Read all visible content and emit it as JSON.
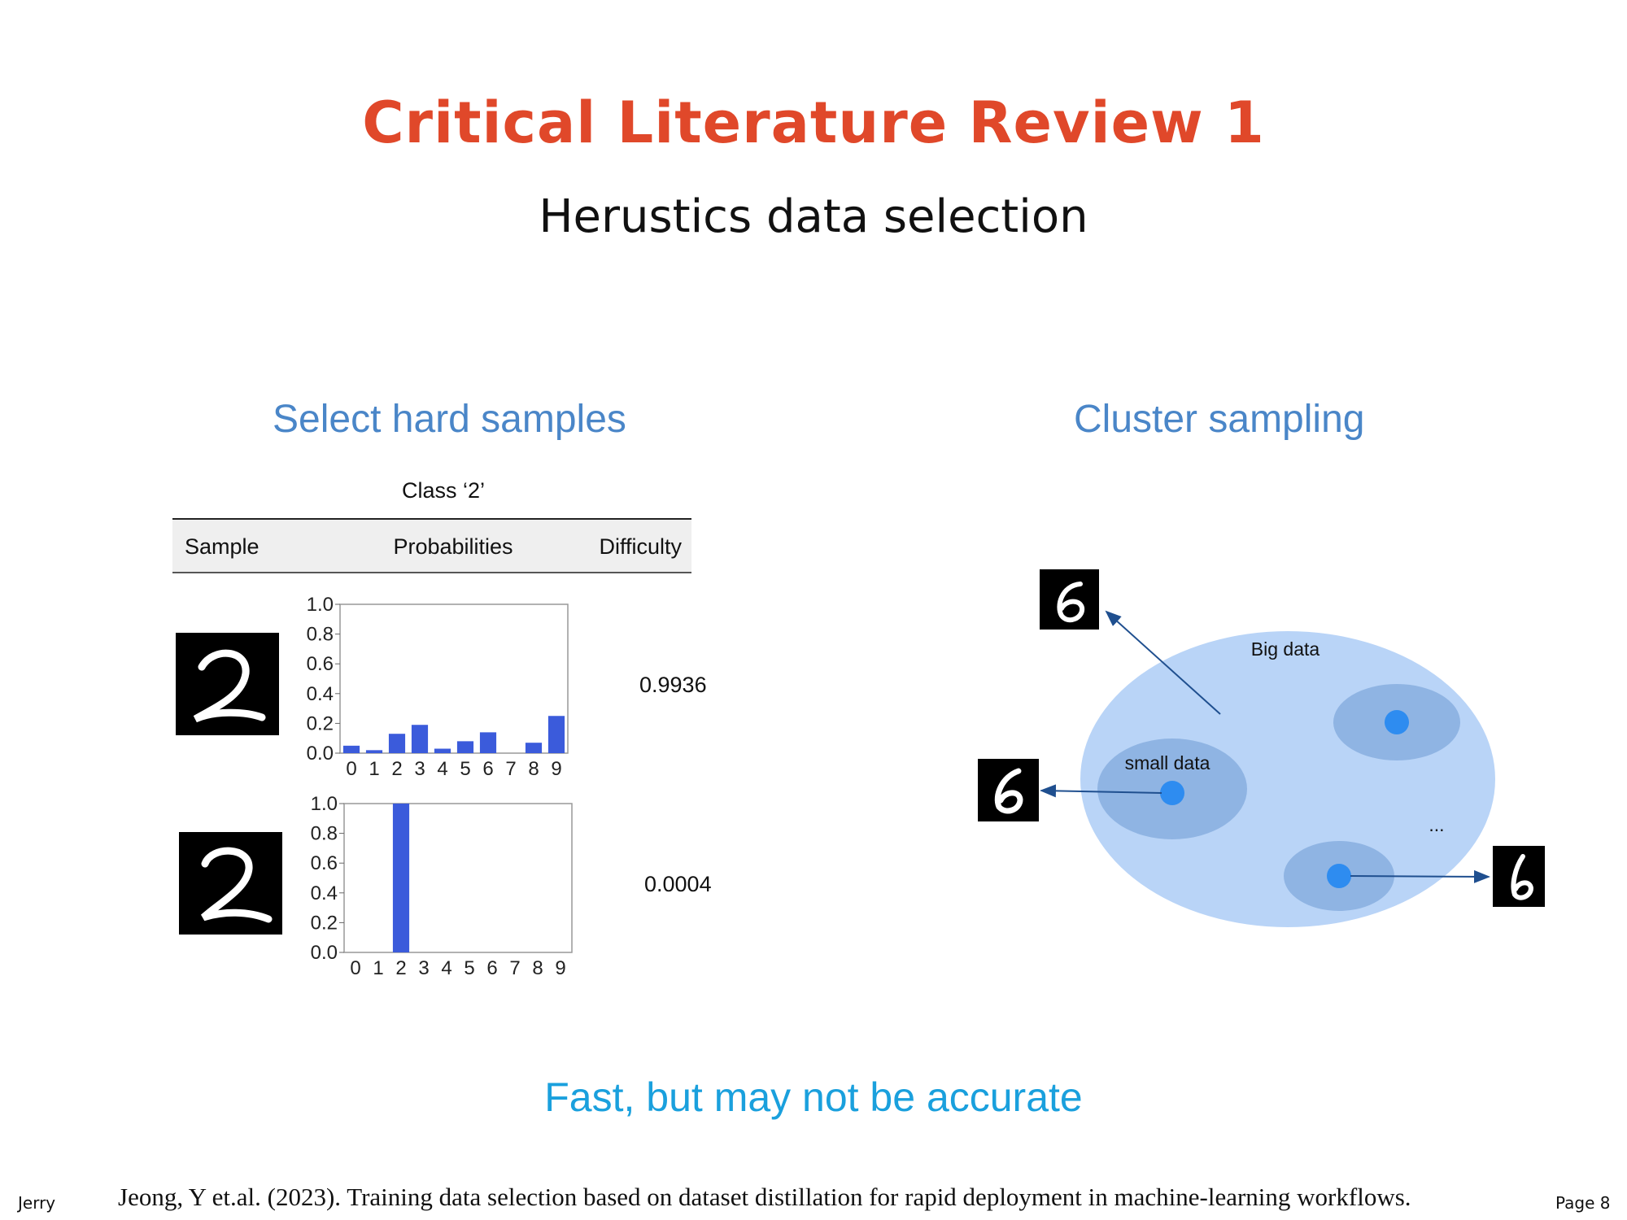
{
  "slide": {
    "title": "Critical Literature Review 1",
    "subtitle": "Herustics data selection",
    "left_heading": "Select hard samples",
    "right_heading": "Cluster sampling",
    "conclusion": "Fast, but may not be accurate",
    "author": "Jerry",
    "citation": "Jeong, Y et.al. (2023). Training data selection based on dataset distillation for rapid deployment in machine-learning workflows.",
    "page_label": "Page 8"
  },
  "figure_table": {
    "caption": "Class ‘2’",
    "headers": [
      "Sample",
      "Probabilities",
      "Difficulty"
    ],
    "rows": [
      {
        "difficulty": "0.9936"
      },
      {
        "difficulty": "0.0004"
      }
    ]
  },
  "chart_data": [
    {
      "type": "bar",
      "categories": [
        "0",
        "1",
        "2",
        "3",
        "4",
        "5",
        "6",
        "7",
        "8",
        "9"
      ],
      "values": [
        0.05,
        0.02,
        0.13,
        0.19,
        0.03,
        0.08,
        0.14,
        0.0,
        0.07,
        0.25
      ],
      "yticks": [
        "0.0",
        "0.2",
        "0.4",
        "0.6",
        "0.8",
        "1.0"
      ],
      "ylim": [
        0,
        1
      ],
      "color": "#3b5bdb"
    },
    {
      "type": "bar",
      "categories": [
        "0",
        "1",
        "2",
        "3",
        "4",
        "5",
        "6",
        "7",
        "8",
        "9"
      ],
      "values": [
        0,
        0,
        1.0,
        0,
        0,
        0,
        0,
        0,
        0,
        0
      ],
      "yticks": [
        "0.0",
        "0.2",
        "0.4",
        "0.6",
        "0.8",
        "1.0"
      ],
      "ylim": [
        0,
        1
      ],
      "color": "#3b5bdb"
    }
  ],
  "cluster_diagram": {
    "big_label": "Big data",
    "small_label": "small data",
    "ellipsis": "...",
    "big_color": "#b9d4f7",
    "cluster_color": "#8fb4e3",
    "dot_color": "#2e8cf0",
    "arrow_color": "#1f4f8f"
  }
}
